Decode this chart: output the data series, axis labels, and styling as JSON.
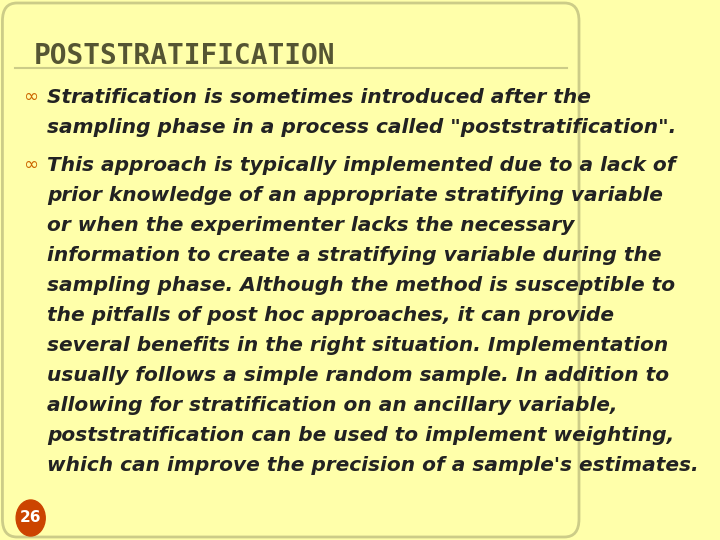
{
  "background_color": "#FFFFAA",
  "border_color": "#CCCC88",
  "title": "POSTSTRATIFICATION",
  "title_color": "#555533",
  "title_fontsize": 20,
  "body_color": "#222222",
  "body_fontsize": 14.5,
  "bullet_color": "#CC6600",
  "page_number": "26",
  "page_num_bg": "#CC4400",
  "page_num_color": "#FFFFFF",
  "bullet1_lines": [
    "Stratification is sometimes introduced after the",
    "sampling phase in a process called \"poststratification\"."
  ],
  "bullet2_lines": [
    "This approach is typically implemented due to a lack of",
    "prior knowledge of an appropriate stratifying variable",
    "or when the experimenter lacks the necessary",
    "information to create a stratifying variable during the",
    "sampling phase. Although the method is susceptible to",
    "the pitfalls of post hoc approaches, it can provide",
    "several benefits in the right situation. Implementation",
    "usually follows a simple random sample. In addition to",
    "allowing for stratification on an ancillary variable,",
    "poststratification can be used to implement weighting,",
    "which can improve the precision of a sample's estimates."
  ]
}
